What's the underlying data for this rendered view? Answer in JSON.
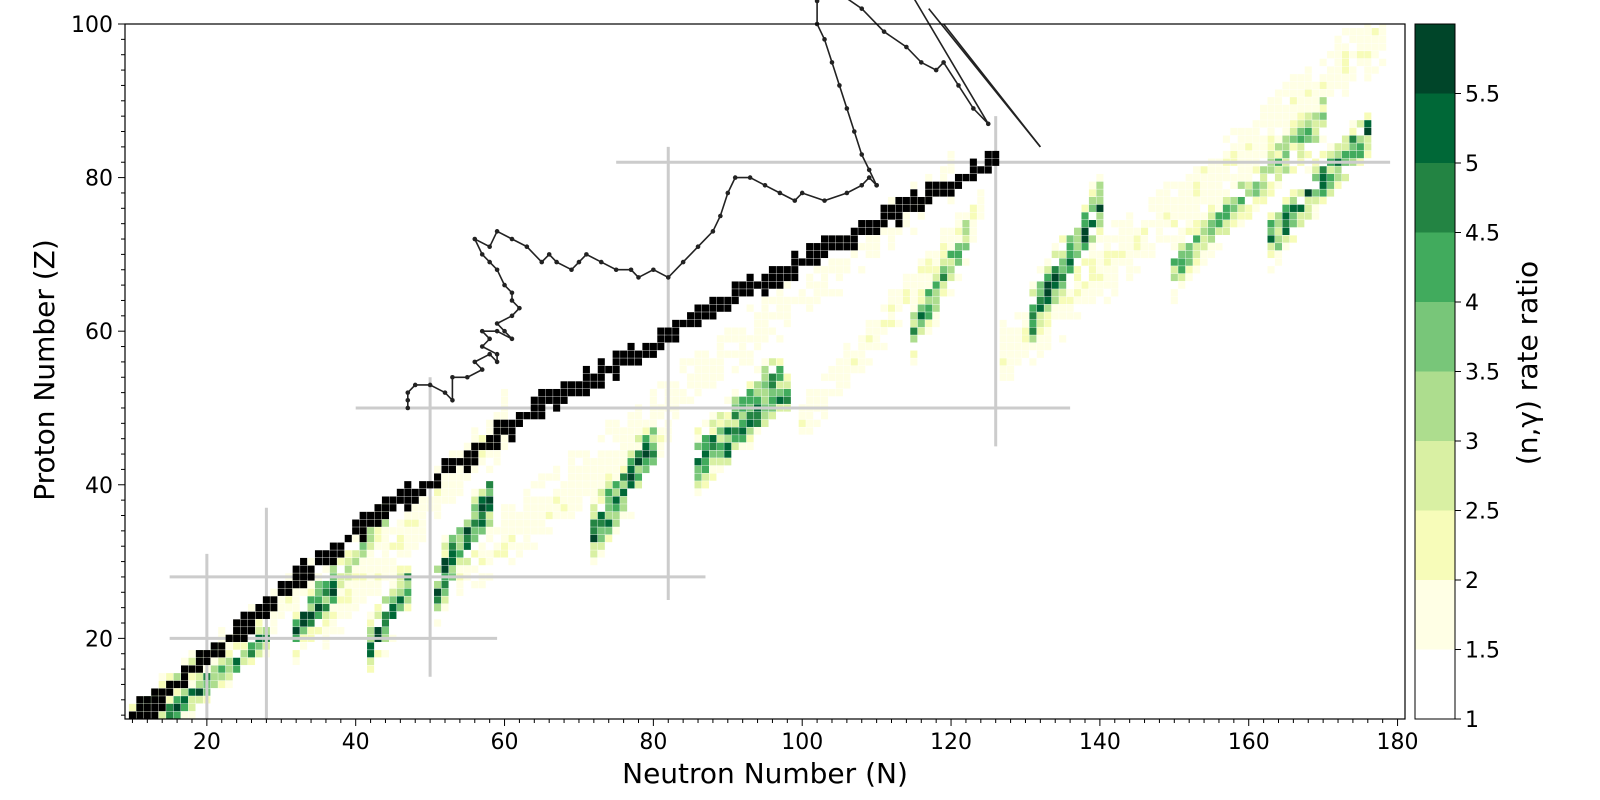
{
  "chart_data": {
    "type": "heatmap",
    "title": "",
    "xlabel": "Neutron Number (N)",
    "ylabel": "Proton Number (Z)",
    "xlim": [
      9,
      181
    ],
    "ylim": [
      9.5,
      100
    ],
    "xticks": [
      20,
      40,
      60,
      80,
      100,
      120,
      140,
      160,
      180
    ],
    "yticks": [
      20,
      40,
      60,
      80,
      100
    ],
    "colorbar": {
      "label": "(n,γ) rate ratio",
      "range": [
        1,
        6
      ],
      "ticks": [
        "1",
        "1.5",
        "2",
        "2.5",
        "3",
        "3.5",
        "4",
        "4.5",
        "5",
        "5.5"
      ],
      "tick_values": [
        1,
        1.5,
        2,
        2.5,
        3,
        3.5,
        4,
        4.5,
        5,
        5.5
      ],
      "bins": [
        {
          "from": 1.0,
          "to": 1.5,
          "color": "#ffffff"
        },
        {
          "from": 1.5,
          "to": 2.0,
          "color": "#ffffe5"
        },
        {
          "from": 2.0,
          "to": 2.5,
          "color": "#f7fcb9"
        },
        {
          "from": 2.5,
          "to": 3.0,
          "color": "#d9f0a3"
        },
        {
          "from": 3.0,
          "to": 3.5,
          "color": "#addd8e"
        },
        {
          "from": 3.5,
          "to": 4.0,
          "color": "#78c679"
        },
        {
          "from": 4.0,
          "to": 4.5,
          "color": "#41ab5d"
        },
        {
          "from": 4.5,
          "to": 5.0,
          "color": "#238443"
        },
        {
          "from": 5.0,
          "to": 5.5,
          "color": "#006837"
        },
        {
          "from": 5.5,
          "to": 6.0,
          "color": "#004529"
        }
      ]
    },
    "magic_numbers": {
      "Z": [
        {
          "z": 20,
          "n_range": [
            15,
            59
          ]
        },
        {
          "z": 28,
          "n_range": [
            15,
            87
          ]
        },
        {
          "z": 50,
          "n_range": [
            40,
            136
          ]
        },
        {
          "z": 82,
          "n_range": [
            75,
            179
          ]
        }
      ],
      "N": [
        {
          "n": 20,
          "z_range": [
            9.5,
            31
          ]
        },
        {
          "n": 28,
          "z_range": [
            9.5,
            37
          ]
        },
        {
          "n": 50,
          "z_range": [
            15,
            54
          ]
        },
        {
          "n": 82,
          "z_range": [
            25,
            84
          ]
        },
        {
          "n": 126,
          "z_range": [
            45,
            88
          ]
        }
      ],
      "color": "#cccccc"
    },
    "stable_color": "#000000",
    "regions": [
      {
        "n": [
          10,
          21
        ],
        "z": [
          10,
          19
        ],
        "thick": 1.5,
        "peak": 3.4
      },
      {
        "n": [
          14,
          28
        ],
        "z": [
          9.5,
          20
        ],
        "thick": 1.8,
        "peak": 5.2
      },
      {
        "n": [
          17,
          34
        ],
        "z": [
          14,
          28
        ],
        "thick": 3.5,
        "peak": 2.1
      },
      {
        "n": [
          32,
          37
        ],
        "z": [
          21,
          27
        ],
        "thick": 3,
        "peak": 5.6
      },
      {
        "n": [
          42,
          47
        ],
        "z": [
          19,
          27
        ],
        "thick": 3,
        "peak": 5.6
      },
      {
        "n": [
          36,
          44
        ],
        "z": [
          25,
          36
        ],
        "thick": 2.5,
        "peak": 3.5
      },
      {
        "n": [
          36,
          60
        ],
        "z": [
          22,
          48
        ],
        "thick": 5,
        "peak": 2
      },
      {
        "n": [
          51,
          58
        ],
        "z": [
          27,
          38
        ],
        "thick": 3.5,
        "peak": 5.8
      },
      {
        "n": [
          54,
          82
        ],
        "z": [
          28,
          47
        ],
        "thick": 4,
        "peak": 2
      },
      {
        "n": [
          72,
          80
        ],
        "z": [
          34,
          45
        ],
        "thick": 3.5,
        "peak": 5.8
      },
      {
        "n": [
          60,
          120
        ],
        "z": [
          34,
          80
        ],
        "thick": 5,
        "peak": 1.8
      },
      {
        "n": [
          86,
          97
        ],
        "z": [
          43,
          54
        ],
        "thick": 3.5,
        "peak": 4.9
      },
      {
        "n": [
          90,
          98
        ],
        "z": [
          45,
          52
        ],
        "thick": 2,
        "peak": 5.7
      },
      {
        "n": [
          100,
          124
        ],
        "z": [
          48,
          76
        ],
        "thick": 4,
        "peak": 2
      },
      {
        "n": [
          115,
          122
        ],
        "z": [
          60,
          72
        ],
        "thick": 3,
        "peak": 4.6
      },
      {
        "n": [
          127,
          178
        ],
        "z": [
          57,
          99
        ],
        "thick": 5.5,
        "peak": 2
      },
      {
        "n": [
          131,
          140
        ],
        "z": [
          62,
          76
        ],
        "thick": 3.5,
        "peak": 5.8
      },
      {
        "n": [
          150,
          170
        ],
        "z": [
          68,
          88
        ],
        "thick": 3,
        "peak": 4
      },
      {
        "n": [
          163,
          176
        ],
        "z": [
          72,
          86
        ],
        "thick": 3,
        "peak": 5.2
      }
    ],
    "stable_valley": [
      [
        10,
        10
      ],
      [
        12,
        11
      ],
      [
        14,
        12
      ],
      [
        16,
        14
      ],
      [
        18,
        16
      ],
      [
        20,
        18
      ],
      [
        22,
        19
      ],
      [
        24,
        21
      ],
      [
        26,
        22
      ],
      [
        28,
        24
      ],
      [
        30,
        26
      ],
      [
        32,
        28
      ],
      [
        34,
        29
      ],
      [
        36,
        31
      ],
      [
        38,
        32
      ],
      [
        40,
        34
      ],
      [
        42,
        35
      ],
      [
        44,
        37
      ],
      [
        46,
        38
      ],
      [
        50,
        40
      ],
      [
        52,
        42
      ],
      [
        56,
        44
      ],
      [
        58,
        46
      ],
      [
        62,
        48
      ],
      [
        64,
        50
      ],
      [
        68,
        52
      ],
      [
        72,
        54
      ],
      [
        76,
        56
      ],
      [
        80,
        58
      ],
      [
        82,
        60
      ],
      [
        86,
        62
      ],
      [
        90,
        64
      ],
      [
        94,
        66
      ],
      [
        98,
        68
      ],
      [
        102,
        70
      ],
      [
        106,
        72
      ],
      [
        110,
        74
      ],
      [
        114,
        76
      ],
      [
        118,
        78
      ],
      [
        122,
        80
      ],
      [
        126,
        82
      ]
    ],
    "rprocess_path": [
      [
        47,
        50
      ],
      [
        47,
        51
      ],
      [
        47,
        52
      ],
      [
        48,
        53
      ],
      [
        50,
        53
      ],
      [
        52,
        52
      ],
      [
        53,
        51
      ],
      [
        53,
        54
      ],
      [
        55,
        54
      ],
      [
        57,
        55
      ],
      [
        56,
        56
      ],
      [
        58,
        57
      ],
      [
        59,
        56
      ],
      [
        59,
        57
      ],
      [
        57,
        58
      ],
      [
        58,
        59
      ],
      [
        57,
        60
      ],
      [
        59,
        60
      ],
      [
        61,
        59
      ],
      [
        60,
        60
      ],
      [
        59,
        61
      ],
      [
        61,
        62
      ],
      [
        62,
        63
      ],
      [
        61,
        64
      ],
      [
        61,
        65
      ],
      [
        60,
        66
      ],
      [
        59,
        68
      ],
      [
        58,
        69
      ],
      [
        57,
        70
      ],
      [
        56,
        72
      ],
      [
        58,
        71
      ],
      [
        59,
        73
      ],
      [
        61,
        72
      ],
      [
        63,
        71
      ],
      [
        65,
        69
      ],
      [
        66,
        70
      ],
      [
        67,
        69
      ],
      [
        69,
        68
      ],
      [
        70,
        69
      ],
      [
        71,
        70
      ],
      [
        73,
        69
      ],
      [
        75,
        68
      ],
      [
        77,
        68
      ],
      [
        78,
        67
      ],
      [
        80,
        68
      ],
      [
        82,
        67
      ],
      [
        84,
        69
      ],
      [
        86,
        71
      ],
      [
        88,
        73
      ],
      [
        89,
        75
      ],
      [
        90,
        78
      ],
      [
        91,
        80
      ],
      [
        93,
        80
      ],
      [
        95,
        79
      ],
      [
        97,
        78
      ],
      [
        99,
        77
      ],
      [
        100,
        78
      ],
      [
        103,
        77
      ],
      [
        106,
        78
      ],
      [
        108,
        79
      ],
      [
        109,
        80
      ],
      [
        110,
        79
      ]
    ],
    "fission_path": [
      [
        110,
        79
      ],
      [
        109,
        81
      ],
      [
        108,
        83
      ],
      [
        107,
        86
      ],
      [
        106,
        89
      ],
      [
        105,
        92
      ],
      [
        104,
        95
      ],
      [
        103,
        98
      ],
      [
        102,
        100
      ],
      [
        102,
        103
      ],
      [
        103,
        105
      ],
      [
        105,
        104
      ],
      [
        108,
        102
      ],
      [
        111,
        99
      ],
      [
        114,
        97
      ],
      [
        116,
        95
      ],
      [
        118,
        94
      ],
      [
        119,
        95
      ],
      [
        121,
        92
      ],
      [
        123,
        89
      ],
      [
        125,
        87
      ]
    ],
    "fission_lines": [
      [
        [
          114,
          105
        ],
        [
          125,
          87
        ]
      ],
      [
        [
          117,
          102
        ],
        [
          132,
          84
        ]
      ],
      [
        [
          119,
          100
        ],
        [
          132,
          84
        ]
      ]
    ]
  }
}
